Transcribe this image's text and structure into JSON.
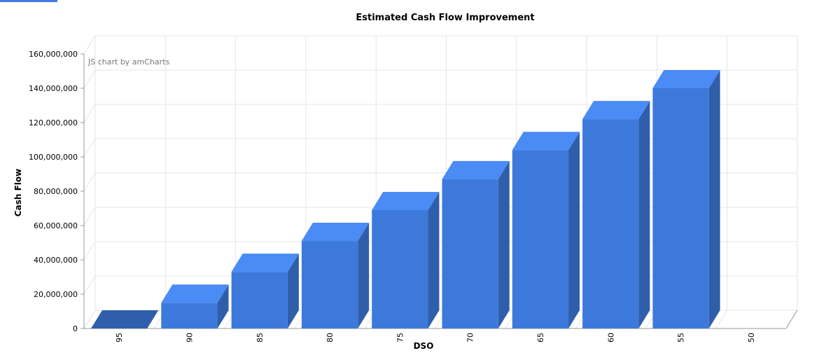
{
  "chart_data": {
    "type": "bar",
    "title": "Estimated Cash Flow Improvement",
    "xlabel": "DSO",
    "ylabel": "Cash Flow",
    "credit": "JS chart by amCharts",
    "categories": [
      "95",
      "90",
      "85",
      "80",
      "75",
      "70",
      "65",
      "60",
      "55",
      "50"
    ],
    "series": [
      {
        "values": [
          0,
          15000000,
          33000000,
          51000000,
          69000000,
          87000000,
          104000000,
          122000000,
          140000000,
          0
        ]
      }
    ],
    "ylim": [
      0,
      160000000
    ],
    "yticks": [
      0,
      20000000,
      40000000,
      60000000,
      80000000,
      100000000,
      120000000,
      140000000,
      160000000
    ],
    "ytick_labels": [
      "0",
      "20,000,000",
      "40,000,000",
      "60,000,000",
      "80,000,000",
      "100,000,000",
      "120,000,000",
      "140,000,000",
      "160,000,000"
    ],
    "grid": true,
    "style": "3d-column",
    "colors": {
      "front": "#3d79db",
      "top": "#4a8bf5",
      "side": "#2f5eab",
      "grid": "#e6e6e6",
      "axis": "#999999",
      "text": "#000000",
      "credit": "#777777"
    }
  }
}
